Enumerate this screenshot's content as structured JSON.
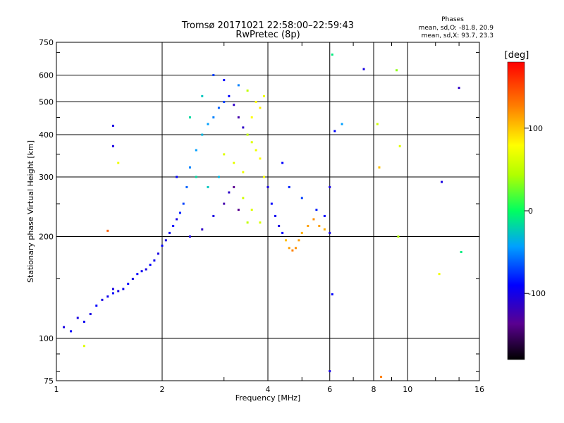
{
  "chart_data": {
    "type": "scatter",
    "title": "Tromsø 20171021 22:58:00–22:59:43",
    "subtitle": "RwPretec (8p)",
    "xlabel": "Frequency [MHz]",
    "ylabel": "Stationary phase Virtual Height [km]",
    "xscale": "log",
    "yscale": "log",
    "xlim": [
      1,
      16
    ],
    "ylim": [
      75,
      750
    ],
    "xticks": [
      1,
      2,
      4,
      6,
      8,
      10,
      16
    ],
    "xtick_labels": [
      "1",
      "2",
      "4",
      "6",
      "8",
      "10",
      "16"
    ],
    "yticks": [
      75,
      100,
      200,
      300,
      400,
      500,
      600,
      750
    ],
    "ytick_labels": [
      "75",
      "100",
      "200",
      "300",
      "400",
      "500",
      "600",
      "750"
    ],
    "grid": true,
    "stats": {
      "title": "Phases",
      "line_o": "mean, sd,O: -81.8, 20.9",
      "line_x": "mean, sd,X:  93.7, 23.3"
    },
    "colorbar": {
      "label": "[deg]",
      "range": [
        -180,
        180
      ],
      "ticks": [
        100,
        0,
        -100
      ],
      "tick_labels": [
        "100",
        "0",
        "-100"
      ],
      "colormap": "rainbow"
    },
    "series": [
      {
        "comment_phase_deg": "each point is [frequency MHz, virtual height km, phase deg]",
        "points": [
          [
            1.05,
            108,
            -110
          ],
          [
            1.1,
            105,
            -100
          ],
          [
            1.15,
            115,
            -110
          ],
          [
            1.2,
            112,
            -105
          ],
          [
            1.25,
            118,
            -110
          ],
          [
            1.3,
            125,
            -100
          ],
          [
            1.35,
            130,
            -110
          ],
          [
            1.4,
            133,
            -105
          ],
          [
            1.45,
            136,
            -100
          ],
          [
            1.5,
            138,
            -110
          ],
          [
            1.55,
            140,
            -105
          ],
          [
            1.6,
            145,
            -100
          ],
          [
            1.65,
            150,
            -110
          ],
          [
            1.7,
            155,
            -100
          ],
          [
            1.75,
            158,
            -105
          ],
          [
            1.8,
            160,
            -110
          ],
          [
            1.85,
            165,
            -100
          ],
          [
            1.9,
            170,
            -105
          ],
          [
            1.95,
            178,
            -110
          ],
          [
            2.0,
            188,
            -100
          ],
          [
            2.05,
            195,
            -110
          ],
          [
            2.1,
            205,
            -105
          ],
          [
            2.15,
            215,
            -100
          ],
          [
            2.2,
            225,
            -110
          ],
          [
            2.25,
            235,
            -90
          ],
          [
            2.3,
            250,
            -80
          ],
          [
            2.35,
            280,
            -70
          ],
          [
            2.4,
            320,
            -60
          ],
          [
            2.5,
            360,
            -50
          ],
          [
            2.6,
            400,
            -40
          ],
          [
            2.7,
            430,
            -50
          ],
          [
            2.8,
            450,
            -60
          ],
          [
            2.9,
            480,
            -70
          ],
          [
            3.0,
            500,
            -80
          ],
          [
            3.1,
            520,
            -100
          ],
          [
            3.2,
            490,
            -120
          ],
          [
            3.3,
            450,
            -130
          ],
          [
            3.4,
            420,
            -120
          ],
          [
            3.5,
            400,
            60
          ],
          [
            3.6,
            380,
            80
          ],
          [
            3.7,
            360,
            90
          ],
          [
            3.8,
            340,
            100
          ],
          [
            3.9,
            300,
            90
          ],
          [
            4.0,
            280,
            -110
          ],
          [
            4.1,
            250,
            -100
          ],
          [
            4.2,
            230,
            -105
          ],
          [
            4.3,
            215,
            -110
          ],
          [
            4.4,
            205,
            -100
          ],
          [
            4.5,
            195,
            120
          ],
          [
            4.6,
            185,
            130
          ],
          [
            4.7,
            182,
            140
          ],
          [
            4.8,
            185,
            135
          ],
          [
            4.9,
            195,
            130
          ],
          [
            5.0,
            205,
            125
          ],
          [
            5.2,
            215,
            130
          ],
          [
            5.4,
            225,
            135
          ],
          [
            5.6,
            215,
            130
          ],
          [
            5.8,
            210,
            125
          ],
          [
            6.0,
            205,
            -110
          ],
          [
            2.2,
            300,
            -100
          ],
          [
            2.4,
            200,
            -110
          ],
          [
            2.6,
            210,
            -120
          ],
          [
            2.8,
            230,
            -110
          ],
          [
            3.0,
            250,
            -130
          ],
          [
            3.2,
            280,
            -140
          ],
          [
            3.4,
            260,
            70
          ],
          [
            3.6,
            240,
            80
          ],
          [
            3.8,
            220,
            75
          ],
          [
            3.0,
            350,
            80
          ],
          [
            3.2,
            330,
            85
          ],
          [
            3.4,
            310,
            90
          ],
          [
            3.6,
            450,
            100
          ],
          [
            3.8,
            480,
            105
          ],
          [
            2.5,
            300,
            -20
          ],
          [
            2.7,
            280,
            -30
          ],
          [
            2.9,
            300,
            -40
          ],
          [
            3.1,
            270,
            -120
          ],
          [
            3.3,
            240,
            -140
          ],
          [
            3.5,
            220,
            60
          ],
          [
            2.4,
            450,
            -20
          ],
          [
            2.6,
            520,
            -30
          ],
          [
            2.8,
            600,
            -80
          ],
          [
            3.0,
            580,
            -100
          ],
          [
            3.3,
            560,
            -60
          ],
          [
            3.5,
            540,
            60
          ],
          [
            3.7,
            500,
            100
          ],
          [
            3.9,
            520,
            90
          ],
          [
            4.4,
            330,
            -100
          ],
          [
            4.6,
            280,
            -90
          ],
          [
            5.0,
            260,
            -80
          ],
          [
            5.5,
            240,
            -90
          ],
          [
            5.8,
            230,
            -100
          ],
          [
            6.0,
            280,
            -110
          ],
          [
            6.1,
            690,
            -10
          ],
          [
            6.2,
            410,
            -100
          ],
          [
            6.5,
            430,
            -50
          ],
          [
            7.5,
            625,
            -110
          ],
          [
            8.2,
            430,
            70
          ],
          [
            8.3,
            320,
            120
          ],
          [
            9.3,
            620,
            40
          ],
          [
            9.5,
            370,
            80
          ],
          [
            12.5,
            290,
            -110
          ],
          [
            14.0,
            550,
            -120
          ],
          [
            14.2,
            180,
            -10
          ],
          [
            12.3,
            155,
            90
          ],
          [
            9.4,
            200,
            50
          ],
          [
            8.4,
            77,
            140
          ],
          [
            6.0,
            80,
            -110
          ],
          [
            6.1,
            135,
            -100
          ],
          [
            1.4,
            208,
            150
          ],
          [
            1.45,
            140,
            -110
          ],
          [
            1.5,
            330,
            90
          ],
          [
            1.45,
            370,
            -110
          ],
          [
            1.45,
            425,
            -110
          ],
          [
            1.2,
            95,
            80
          ]
        ]
      }
    ]
  }
}
